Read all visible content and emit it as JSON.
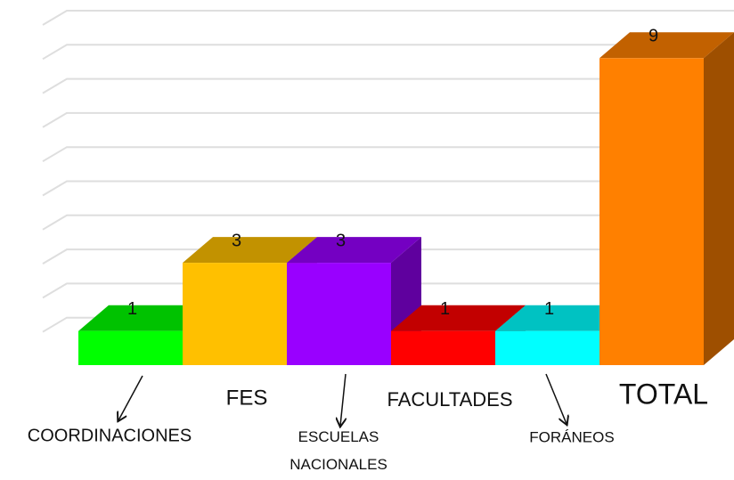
{
  "chart_data": {
    "type": "bar3d",
    "categories": [
      "COORDINACIONES",
      "FES",
      "ESCUELAS NACIONALES",
      "FACULTADES",
      "FORÁNEOS",
      "TOTAL"
    ],
    "values": [
      1,
      3,
      3,
      1,
      1,
      9
    ],
    "colors": [
      "#00ff00",
      "#ffc000",
      "#9900ff",
      "#ff0000",
      "#00ffff",
      "#ff8000"
    ],
    "ylim": [
      0,
      10
    ],
    "yticks": [
      1,
      2,
      3,
      4,
      5,
      6,
      7,
      8,
      9,
      10
    ],
    "grid": true
  }
}
